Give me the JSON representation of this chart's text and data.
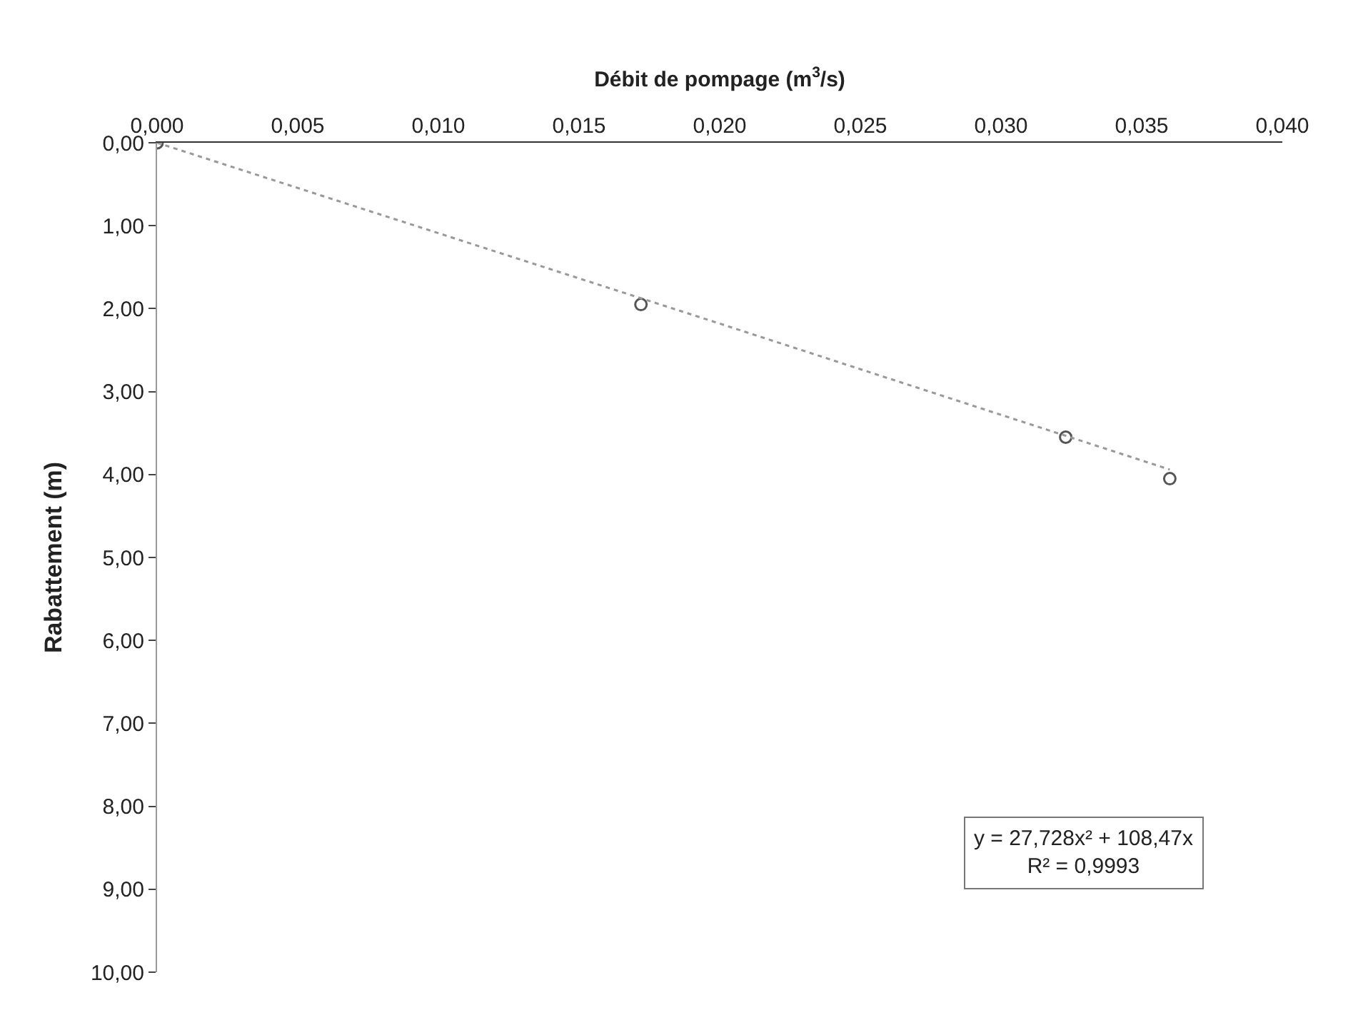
{
  "chart_data": {
    "type": "scatter",
    "xlabel": "Débit de pompage (m$^{3}$/s)",
    "ylabel": "Rabattement (m)",
    "xlim": [
      0,
      0.04
    ],
    "xticks": [
      {
        "value": 0,
        "label": "0,000"
      },
      {
        "value": 0.005,
        "label": "0,005"
      },
      {
        "value": 0.01,
        "label": "0,010"
      },
      {
        "value": 0.015,
        "label": "0,015"
      },
      {
        "value": 0.02,
        "label": "0,020"
      },
      {
        "value": 0.025,
        "label": "0,025"
      },
      {
        "value": 0.03,
        "label": "0,030"
      },
      {
        "value": 0.035,
        "label": "0,035"
      },
      {
        "value": 0.04,
        "label": "0,040"
      }
    ],
    "ylim": [
      10,
      0
    ],
    "yticks": [
      {
        "value": 0,
        "label": "0,00"
      },
      {
        "value": 1,
        "label": "1,00"
      },
      {
        "value": 2,
        "label": "2,00"
      },
      {
        "value": 3,
        "label": "3,00"
      },
      {
        "value": 4,
        "label": "4,00"
      },
      {
        "value": 5,
        "label": "5,00"
      },
      {
        "value": 6,
        "label": "6,00"
      },
      {
        "value": 7,
        "label": "7,00"
      },
      {
        "value": 8,
        "label": "8,00"
      },
      {
        "value": 9,
        "label": "9,00"
      },
      {
        "value": 10,
        "label": "10,00"
      }
    ],
    "series": [
      {
        "color": "#555555",
        "marker": "circle",
        "x": [
          0,
          0.0172,
          0.0323,
          0.036
        ],
        "values": [
          0,
          1.95,
          3.55,
          4.05
        ]
      },
      {
        "type": "line",
        "color": "#999999",
        "line_style": "dotted",
        "x": [
          0,
          0.01,
          0.02,
          0.03,
          0.036
        ],
        "values": [
          0,
          1.09,
          2.18,
          3.28,
          3.94
        ]
      }
    ],
    "annotations": [
      "y = 27,728x² + 108,47x",
      "R² = 0,9993"
    ]
  }
}
